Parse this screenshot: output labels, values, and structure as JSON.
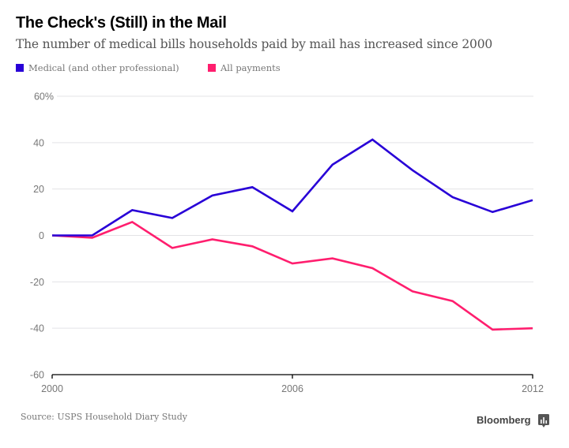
{
  "header": {
    "title": "The Check's (Still) in the Mail",
    "subtitle": "The number of medical bills households paid by mail has increased since 2000"
  },
  "legend": [
    {
      "label": "Medical (and other professional)",
      "color": "#2800D7"
    },
    {
      "label": "All payments",
      "color": "#FF1E6E"
    }
  ],
  "footer": {
    "source": "Source: USPS Household Diary Study",
    "brand": "Bloomberg",
    "brand_icon": "bloomberg-chart-icon"
  },
  "chart_data": {
    "type": "line",
    "title": "The Check's (Still) in the Mail",
    "subtitle": "The number of medical bills households paid by mail has increased since 2000",
    "xlabel": "",
    "ylabel": "",
    "x": [
      2000,
      2001,
      2002,
      2003,
      2004,
      2005,
      2006,
      2007,
      2008,
      2009,
      2010,
      2011,
      2012
    ],
    "series": [
      {
        "name": "Medical (and other professional)",
        "color": "#2800D7",
        "values": [
          0,
          0,
          10.9,
          7.5,
          17.2,
          20.8,
          10.4,
          30.5,
          41.3,
          28.1,
          16.5,
          10.1,
          15.2
        ]
      },
      {
        "name": "All payments",
        "color": "#FF1E6E",
        "values": [
          0,
          -1,
          5.8,
          -5.4,
          -1.7,
          -4.7,
          -12.1,
          -9.9,
          -14.1,
          -24.1,
          -28.3,
          -40.6,
          -40.0
        ]
      }
    ],
    "xlim": [
      2000,
      2012
    ],
    "ylim": [
      -60,
      60
    ],
    "x_ticks": [
      2000,
      2006,
      2012
    ],
    "x_tick_labels": [
      "2000",
      "2006",
      "2012"
    ],
    "y_ticks": [
      60,
      40,
      20,
      0,
      -20,
      -40,
      -60
    ],
    "y_tick_labels": [
      "60%",
      "40",
      "20",
      "0",
      "-20",
      "-40",
      "-60"
    ],
    "grid": "horizontal",
    "legend_position": "top-left",
    "source": "Source: USPS Household Diary Study"
  }
}
